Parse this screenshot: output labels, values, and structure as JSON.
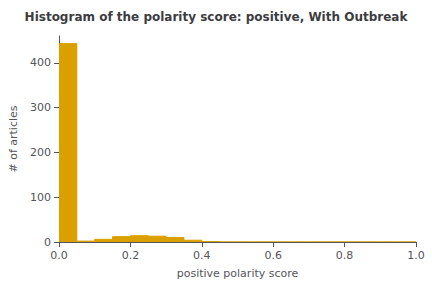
{
  "chart_data": {
    "type": "histogram",
    "title": "Histogram of the polarity score: positive, With Outbreak",
    "xlabel": "positive polarity score",
    "ylabel": "# of articles",
    "color": "#DAA000",
    "bins": [
      0.0,
      0.05,
      0.1,
      0.15,
      0.2,
      0.25,
      0.3,
      0.35,
      0.4,
      0.45,
      0.5,
      0.55,
      0.6,
      0.65,
      0.7,
      0.75,
      0.8,
      0.85,
      0.9,
      0.95,
      1.0
    ],
    "values": [
      443,
      2,
      6,
      12,
      14,
      13,
      10,
      4,
      1,
      0,
      0,
      0,
      0,
      0,
      0,
      0,
      0,
      0,
      0,
      0
    ],
    "xlim": [
      0.0,
      1.0
    ],
    "ylim": [
      0,
      460
    ],
    "xticks": [
      {
        "value": 0.0,
        "label": "0.0"
      },
      0.2,
      0.4,
      0.6,
      0.8,
      {
        "value": 1.0,
        "label": "1.0"
      }
    ],
    "yticks": [
      0,
      100,
      200,
      300,
      400
    ],
    "grid": false
  }
}
